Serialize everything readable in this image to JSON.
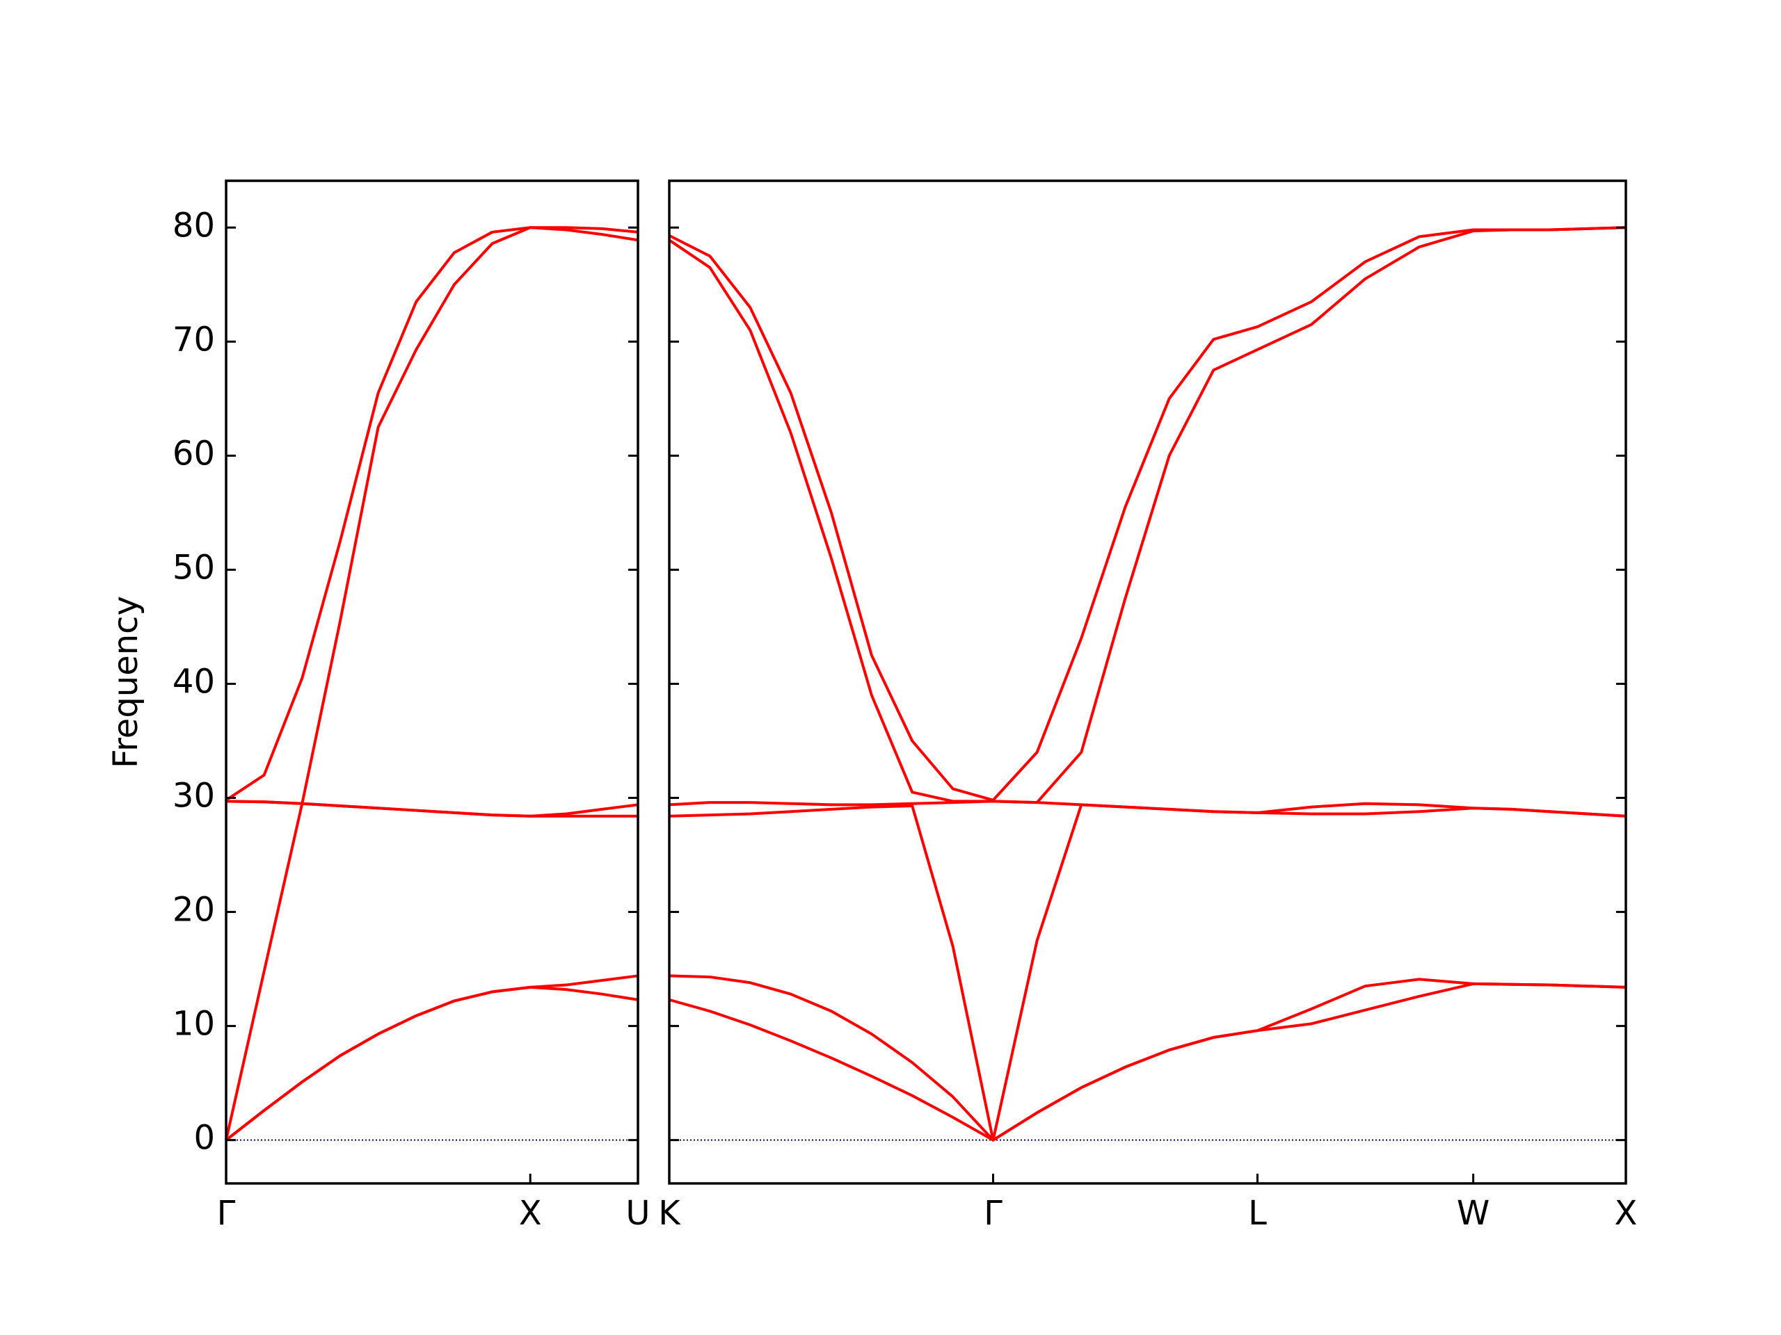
{
  "chart_data": [
    {
      "type": "line",
      "ylabel": "Frequency",
      "color": "#ff0000",
      "show_ytick_labels": true,
      "hlines": [
        0
      ],
      "hline_color": "#00008b",
      "xlim": [
        0,
        1.354
      ],
      "ylim": [
        -3.8,
        84.1
      ],
      "yticks": [
        0,
        10,
        20,
        30,
        40,
        50,
        60,
        70,
        80
      ],
      "xticks": [
        {
          "value": 0,
          "label": "Γ"
        },
        {
          "value": 1,
          "label": "X"
        },
        {
          "value": 1.354,
          "label": "U"
        }
      ],
      "x": [
        0,
        0.125,
        0.25,
        0.375,
        0.5,
        0.625,
        0.75,
        0.875,
        1,
        1.118,
        1.236,
        1.354
      ],
      "series": [
        {
          "values": [
            0,
            2.6,
            5.1,
            7.4,
            9.3,
            10.9,
            12.2,
            13.0,
            13.4,
            13.6,
            14.0,
            14.4
          ]
        },
        {
          "values": [
            0,
            2.6,
            5.1,
            7.4,
            9.3,
            10.9,
            12.2,
            13.0,
            13.4,
            13.2,
            12.8,
            12.3
          ]
        },
        {
          "values": [
            0,
            14.8,
            29.5,
            45.5,
            62.5,
            69.3,
            75,
            78.6,
            80,
            79.8,
            79.4,
            78.9
          ]
        },
        {
          "values": [
            29.7,
            29.65,
            29.5,
            29.3,
            29.1,
            28.9,
            28.7,
            28.5,
            28.4,
            28.6,
            29.0,
            29.4
          ]
        },
        {
          "values": [
            29.7,
            29.65,
            29.5,
            29.3,
            29.1,
            28.9,
            28.7,
            28.5,
            28.4,
            28.4,
            28.4,
            28.4
          ]
        },
        {
          "values": [
            29.8,
            32,
            40.5,
            52.5,
            65.5,
            73.5,
            77.8,
            79.6,
            80,
            80,
            79.9,
            79.6
          ]
        }
      ]
    },
    {
      "type": "line",
      "color": "#ff0000",
      "show_ytick_labels": false,
      "hlines": [
        0
      ],
      "hline_color": "#00008b",
      "xlim": [
        1.354,
        4.488
      ],
      "ylim": [
        -3.8,
        84.1
      ],
      "yticks": [
        0,
        10,
        20,
        30,
        40,
        50,
        60,
        70,
        80
      ],
      "xticks": [
        {
          "value": 1.354,
          "label": "K"
        },
        {
          "value": 2.415,
          "label": "Γ"
        },
        {
          "value": 3.281,
          "label": "L"
        },
        {
          "value": 3.988,
          "label": "W"
        },
        {
          "value": 4.488,
          "label": "X"
        }
      ],
      "x": [
        1.354,
        1.487,
        1.619,
        1.752,
        1.885,
        2.017,
        2.15,
        2.283,
        2.415,
        2.559,
        2.704,
        2.848,
        2.992,
        3.137,
        3.281,
        3.458,
        3.634,
        3.811,
        3.988,
        4.113,
        4.238,
        4.363,
        4.488
      ],
      "series": [
        {
          "values": [
            12.3,
            11.3,
            10.1,
            8.7,
            7.2,
            5.6,
            3.9,
            2.0,
            0,
            2.4,
            4.6,
            6.4,
            7.9,
            9.0,
            9.6,
            10.2,
            11.4,
            12.6,
            13.7,
            13.65,
            13.6,
            13.5,
            13.4
          ]
        },
        {
          "values": [
            14.4,
            14.3,
            13.8,
            12.8,
            11.3,
            9.3,
            6.8,
            3.8,
            0,
            2.4,
            4.6,
            6.4,
            7.9,
            9.0,
            9.6,
            11.5,
            13.5,
            14.1,
            13.7,
            13.65,
            13.6,
            13.5,
            13.4
          ]
        },
        {
          "values": [
            28.4,
            28.5,
            28.6,
            28.8,
            29.0,
            29.2,
            29.3,
            17,
            0,
            17.5,
            29.4,
            29.2,
            29.0,
            28.8,
            28.7,
            28.6,
            28.6,
            28.8,
            29.1,
            29.0,
            28.8,
            28.6,
            28.4
          ]
        },
        {
          "values": [
            29.4,
            29.6,
            29.6,
            29.5,
            29.4,
            29.4,
            29.5,
            29.6,
            29.7,
            29.6,
            29.4,
            29.2,
            29.0,
            28.8,
            28.7,
            29.2,
            29.5,
            29.4,
            29.1,
            29.0,
            28.8,
            28.6,
            28.4
          ]
        },
        {
          "values": [
            78.9,
            76.5,
            71,
            62,
            51,
            39,
            30.5,
            29.7,
            29.7,
            29.6,
            34,
            47.5,
            60,
            67.5,
            69.3,
            71.5,
            75.5,
            78.3,
            79.7,
            79.8,
            79.8,
            79.9,
            80.0
          ]
        },
        {
          "values": [
            79.3,
            77.5,
            73,
            65.5,
            55,
            42.5,
            35,
            30.8,
            29.8,
            34,
            44,
            55.5,
            65,
            70.2,
            71.3,
            73.5,
            77,
            79.2,
            79.8,
            79.8,
            79.8,
            79.9,
            80.0
          ]
        }
      ]
    }
  ]
}
